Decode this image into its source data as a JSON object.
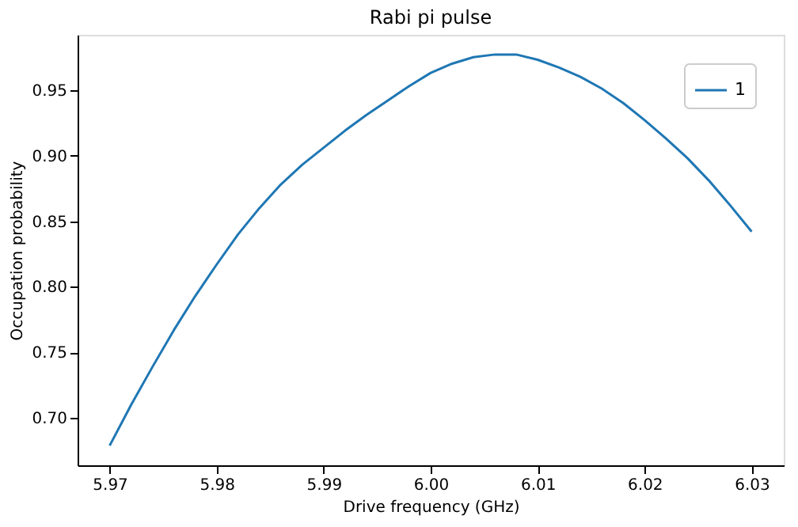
{
  "chart_data": {
    "type": "line",
    "title": "Rabi pi pulse",
    "xlabel": "Drive frequency (GHz)",
    "ylabel": "Occupation probability",
    "x": [
      5.97,
      5.972,
      5.974,
      5.976,
      5.978,
      5.98,
      5.982,
      5.984,
      5.986,
      5.988,
      5.99,
      5.992,
      5.994,
      5.996,
      5.998,
      6.0,
      6.002,
      6.004,
      6.006,
      6.008,
      6.01,
      6.012,
      6.014,
      6.016,
      6.018,
      6.02,
      6.022,
      6.024,
      6.026,
      6.028,
      6.03
    ],
    "series": [
      {
        "name": "1",
        "color": "#1f77b4",
        "values": [
          0.679,
          0.71,
          0.739,
          0.767,
          0.793,
          0.817,
          0.84,
          0.86,
          0.878,
          0.893,
          0.906,
          0.919,
          0.931,
          0.942,
          0.953,
          0.963,
          0.97,
          0.975,
          0.977,
          0.977,
          0.973,
          0.967,
          0.96,
          0.951,
          0.94,
          0.927,
          0.913,
          0.898,
          0.881,
          0.862,
          0.842
        ]
      }
    ],
    "xlim": [
      5.967,
      6.033
    ],
    "ylim": [
      0.664,
      0.992
    ],
    "xticks": [
      5.97,
      5.98,
      5.99,
      {
        "value": 6.0,
        "label": "6.00"
      },
      6.01,
      6.02,
      6.03
    ],
    "yticks": [
      {
        "value": 0.7,
        "label": "0.70"
      },
      0.75,
      {
        "value": 0.8,
        "label": "0.80"
      },
      0.85,
      {
        "value": 0.9,
        "label": "0.90"
      },
      0.95
    ],
    "grid": false,
    "legend": "top right",
    "marker": "none",
    "line_style": "solid"
  }
}
